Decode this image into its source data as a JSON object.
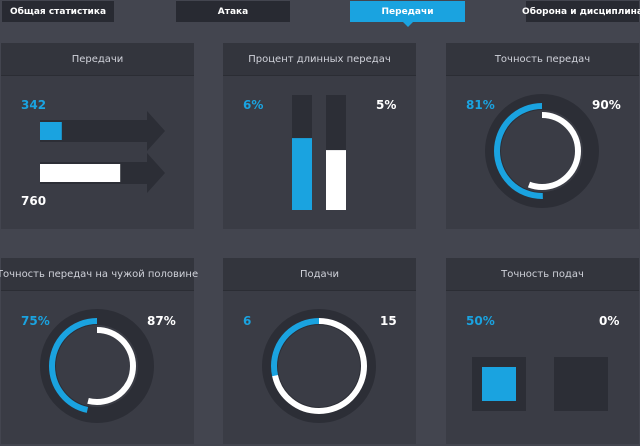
{
  "tabs": [
    {
      "label": "Общая статистика"
    },
    {
      "label": "Атака"
    },
    {
      "label": "Передачи"
    },
    {
      "label": "Оборона и дисциплина"
    }
  ],
  "active_tab": 2,
  "colors": {
    "accent": "#1aa3e0",
    "second": "#ffffff",
    "track": "#2c2e36",
    "bg": "#43454f"
  },
  "panels": [
    {
      "title": "Передачи",
      "type": "arrows",
      "a_value": 342,
      "b_value": 760,
      "a_label": "342",
      "b_label": "760"
    },
    {
      "title": "Процент длинных передач",
      "type": "bars",
      "a_pct": 6,
      "b_pct": 5,
      "a_label": "6%",
      "b_label": "5%"
    },
    {
      "title": "Точность передач",
      "type": "rings",
      "a_pct": 81,
      "b_pct": 90,
      "a_label": "81%",
      "b_label": "90%"
    },
    {
      "title": "Точность передач на чужой половине",
      "type": "rings",
      "a_pct": 75,
      "b_pct": 87,
      "a_label": "75%",
      "b_label": "87%"
    },
    {
      "title": "Подачи",
      "type": "rings",
      "a_value": 6,
      "b_value": 15,
      "a_label": "6",
      "b_label": "15"
    },
    {
      "title": "Точность подач",
      "type": "squares",
      "a_pct": 50,
      "b_pct": 0,
      "a_label": "50%",
      "b_label": "0%"
    }
  ]
}
